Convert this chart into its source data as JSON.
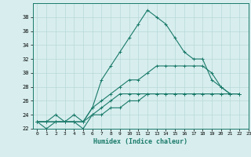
{
  "xlabel": "Humidex (Indice chaleur)",
  "ylabel": "",
  "bg_color": "#d8eeee",
  "grid_color": "#b8d8d8",
  "line_color": "#1a7a6a",
  "series": [
    [
      23,
      23,
      23,
      23,
      24,
      23,
      25,
      29,
      31,
      33,
      35,
      37,
      39,
      38,
      37,
      35,
      33,
      32,
      32,
      29,
      28,
      27,
      27
    ],
    [
      23,
      23,
      23,
      23,
      23,
      23,
      24,
      24,
      25,
      25,
      26,
      26,
      27,
      27,
      27,
      27,
      27,
      27,
      27,
      27,
      27,
      27,
      27
    ],
    [
      23,
      22,
      23,
      23,
      23,
      22,
      24,
      25,
      26,
      27,
      27,
      27,
      27,
      27,
      27,
      27,
      27,
      27,
      27,
      27,
      27,
      27,
      27
    ],
    [
      23,
      23,
      24,
      23,
      23,
      23,
      25,
      26,
      27,
      28,
      29,
      29,
      30,
      31,
      31,
      31,
      31,
      31,
      31,
      30,
      28,
      27,
      27
    ]
  ],
  "xlim": [
    -0.5,
    23
  ],
  "ylim": [
    22,
    40
  ],
  "yticks": [
    22,
    24,
    26,
    28,
    30,
    32,
    34,
    36,
    38
  ],
  "xticks": [
    0,
    1,
    2,
    3,
    4,
    5,
    6,
    7,
    8,
    9,
    10,
    11,
    12,
    13,
    14,
    15,
    16,
    17,
    18,
    19,
    20,
    21,
    22,
    23
  ],
  "marker": "+",
  "markersize": 3,
  "linewidth": 0.8
}
